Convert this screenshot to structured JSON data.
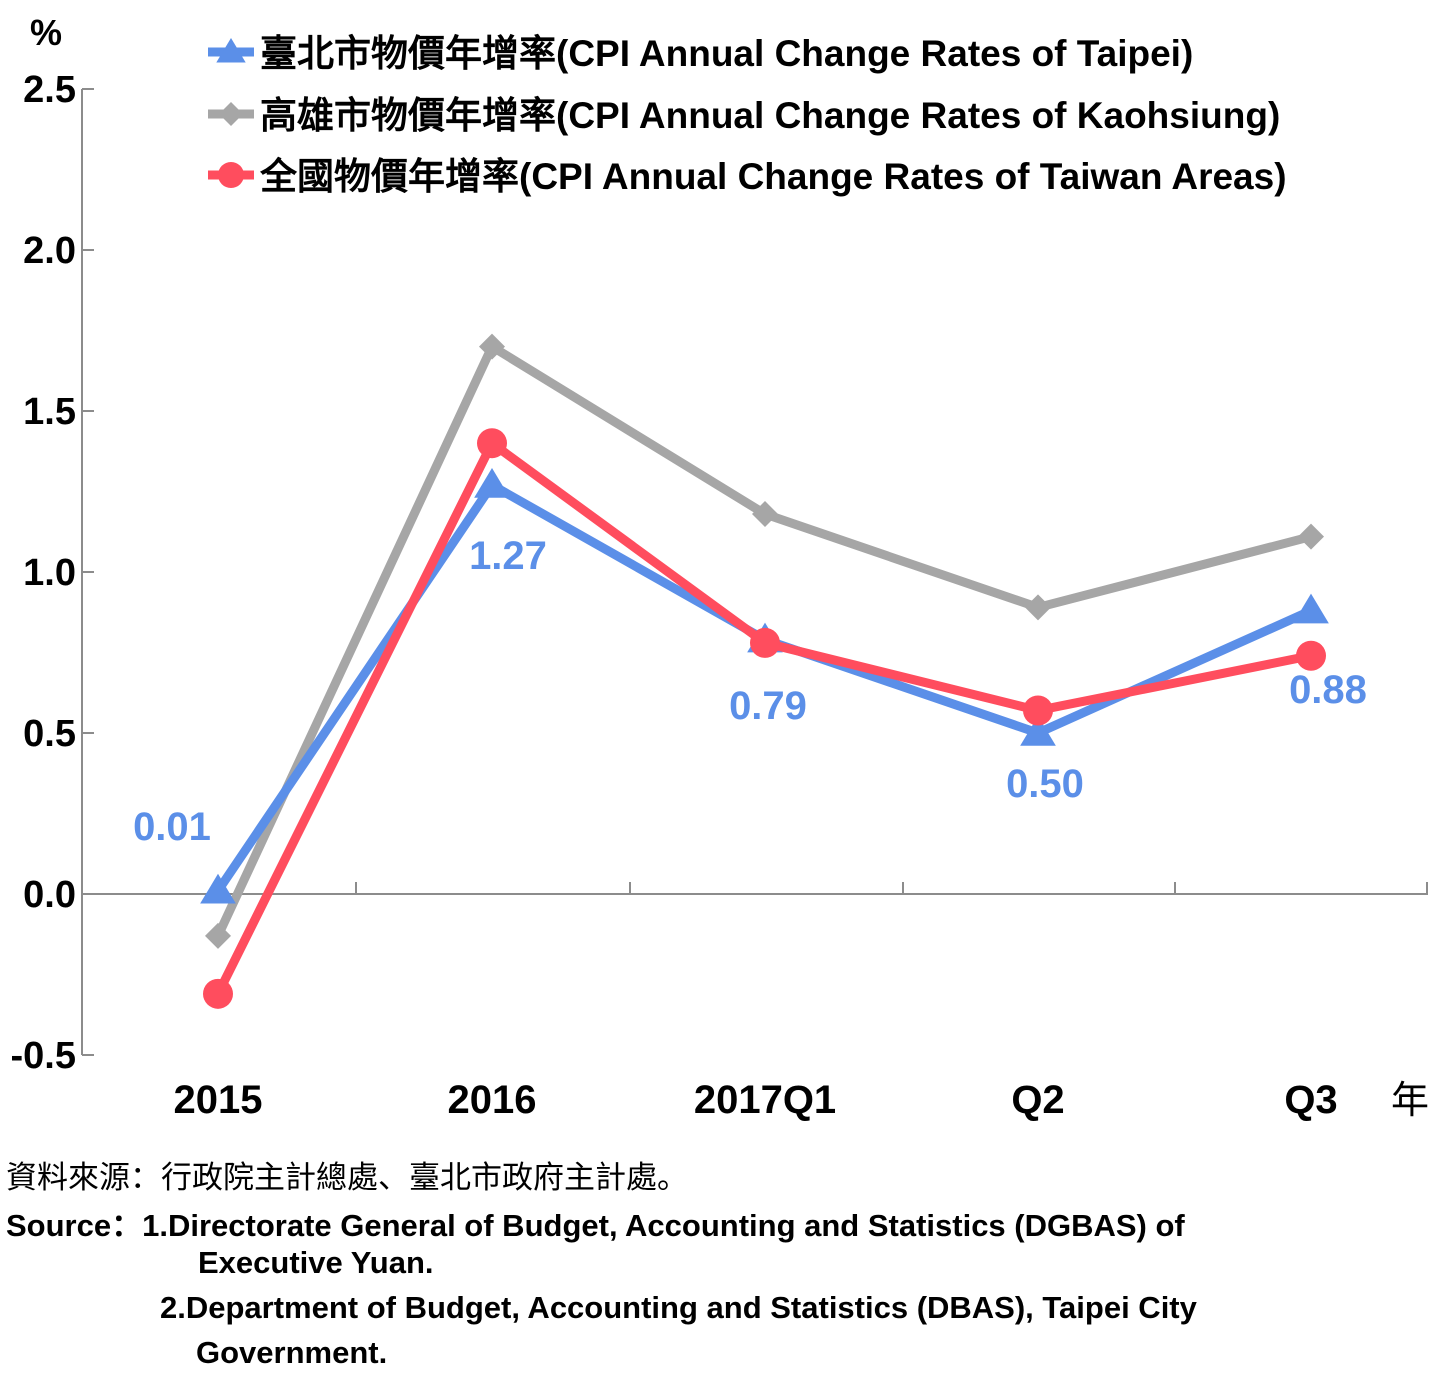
{
  "chart_data": {
    "type": "line",
    "y_unit": "%",
    "x_unit": "年",
    "categories": [
      "2015",
      "2016",
      "2017Q1",
      "Q2",
      "Q3"
    ],
    "ylim": [
      -0.5,
      2.5
    ],
    "yticks": [
      "2.5",
      "2.0",
      "1.5",
      "1.0",
      "0.5",
      "0.0",
      "-0.5"
    ],
    "ytick_values": [
      2.5,
      2.0,
      1.5,
      1.0,
      0.5,
      0.0,
      -0.5
    ],
    "grid": false,
    "legend_position": "top",
    "series": [
      {
        "name": "臺北市物價年增率(CPI Annual Change Rates of Taipei)",
        "values": [
          0.01,
          1.27,
          0.79,
          0.5,
          0.88
        ],
        "labels": [
          "0.01",
          "1.27",
          "0.79",
          "0.50",
          "0.88"
        ],
        "color": "#5B8FE8",
        "marker": "triangle"
      },
      {
        "name": "高雄市物價年增率(CPI Annual Change Rates of Kaohsiung)",
        "values": [
          -0.13,
          1.7,
          1.18,
          0.89,
          1.11
        ],
        "color": "#A6A6A6",
        "marker": "diamond"
      },
      {
        "name": "全國物價年增率(CPI Annual Change Rates of Taiwan Areas)",
        "values": [
          -0.31,
          1.4,
          0.78,
          0.57,
          0.74
        ],
        "color": "#FF4D5E",
        "marker": "circle"
      }
    ]
  },
  "source": {
    "zh": "資料來源：行政院主計總處、臺北市政府主計處。",
    "en_prefix": "Source：",
    "en_line1": "1.Directorate General of Budget, Accounting and Statistics (DGBAS) of",
    "en_line2": "Executive Yuan.",
    "en_line3": "2.Department of Budget, Accounting and Statistics (DBAS), Taipei City",
    "en_line4": "Government."
  }
}
